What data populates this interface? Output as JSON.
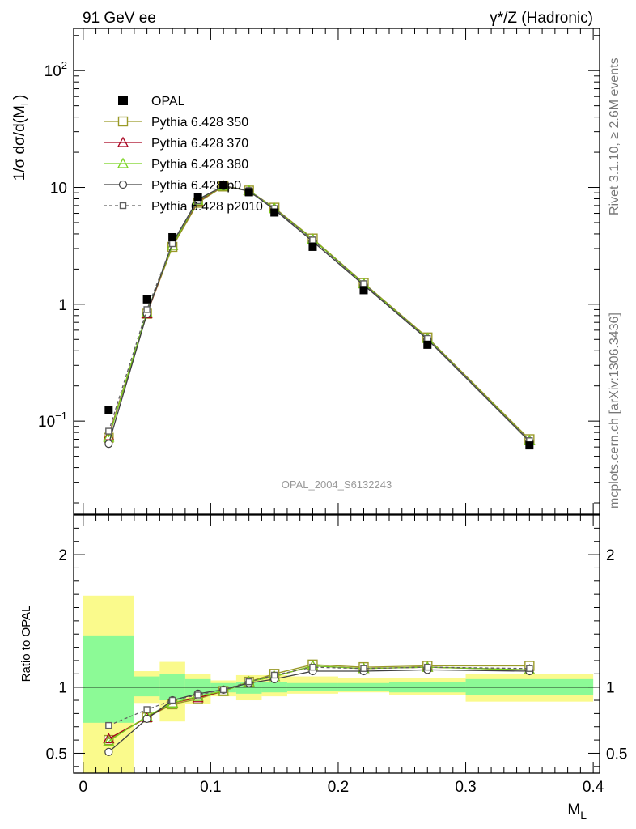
{
  "header": {
    "left": "91 GeV ee",
    "right_prefix": "γ*/Z",
    "right_suffix": " (Hadronic)"
  },
  "side_text": {
    "rivet": "Rivet 3.1.10, ≥ 2.6M events",
    "mcplots": "mcplots.cern.ch [arXiv:1306.3436]"
  },
  "watermark": "OPAL_2004_S6132243",
  "colors": {
    "data": "#000000",
    "p350": "#9a9a28",
    "p370": "#a8001e",
    "p380": "#78d21e",
    "p0": "#404040",
    "p2010": "#606060",
    "band_green": "#8cfa96",
    "band_yellow": "#fafa8c"
  },
  "chart_data": [
    {
      "type": "scatter",
      "panel": "main",
      "ylabel_main": "1/σ dσ/d(M",
      "ylabel_sub": "L",
      "ylabel_close": ")",
      "yscale": "log",
      "ylim": [
        0.016,
        230
      ],
      "xlim": [
        -0.0075,
        0.405
      ],
      "yticks": [
        {
          "value": 0.1,
          "base": "10",
          "exp": "−1"
        },
        {
          "value": 1,
          "base": "1",
          "exp": ""
        },
        {
          "value": 10,
          "base": "10",
          "exp": ""
        },
        {
          "value": 100,
          "base": "10",
          "exp": "2"
        }
      ],
      "legend": {
        "placement": "top-left",
        "entries": [
          {
            "key": "data",
            "label": "OPAL"
          },
          {
            "key": "p350",
            "label": "Pythia 6.428 350"
          },
          {
            "key": "p370",
            "label": "Pythia 6.428 370"
          },
          {
            "key": "p380",
            "label": "Pythia 6.428 380"
          },
          {
            "key": "p0",
            "label": "Pythia 6.428 p0"
          },
          {
            "key": "p2010",
            "label": "Pythia 6.428 p2010"
          }
        ]
      },
      "x": [
        0.02,
        0.05,
        0.07,
        0.09,
        0.11,
        0.13,
        0.15,
        0.18,
        0.22,
        0.27,
        0.35
      ],
      "data": [
        0.125,
        1.1,
        3.75,
        8.3,
        10.5,
        9.1,
        6.1,
        3.1,
        1.32,
        0.45,
        0.062
      ],
      "series": [
        {
          "key": "p350",
          "name": "Pythia 6.428 350",
          "marker": "square",
          "dash": false,
          "values": [
            0.072,
            0.83,
            3.1,
            7.4,
            10.2,
            9.4,
            6.7,
            3.65,
            1.52,
            0.52,
            0.07
          ]
        },
        {
          "key": "p370",
          "name": "Pythia 6.428 370",
          "marker": "triangle",
          "dash": false,
          "values": [
            0.075,
            0.83,
            3.2,
            7.6,
            10.3,
            9.4,
            6.6,
            3.6,
            1.5,
            0.51,
            0.068
          ]
        },
        {
          "key": "p380",
          "name": "Pythia 6.428 380",
          "marker": "triangle",
          "dash": false,
          "values": [
            0.073,
            0.85,
            3.2,
            7.7,
            10.3,
            9.4,
            6.6,
            3.6,
            1.5,
            0.51,
            0.068
          ]
        },
        {
          "key": "p0",
          "name": "Pythia 6.428 p0",
          "marker": "circle",
          "dash": false,
          "values": [
            0.064,
            0.83,
            3.35,
            7.9,
            10.3,
            9.3,
            6.45,
            3.45,
            1.46,
            0.5,
            0.067
          ]
        },
        {
          "key": "p2010",
          "name": "Pythia 6.428 p2010",
          "marker": "square",
          "dash": true,
          "values": [
            0.082,
            0.9,
            3.3,
            7.7,
            10.3,
            9.4,
            6.6,
            3.55,
            1.5,
            0.51,
            0.068
          ]
        }
      ]
    },
    {
      "type": "scatter",
      "panel": "ratio",
      "ylabel": "Ratio to OPAL",
      "xlabel_main": "M",
      "xlabel_sub": "L",
      "ylim": [
        0.35,
        2.3
      ],
      "yticks": [
        0.5,
        1,
        2
      ],
      "xticks": [
        0,
        0.1,
        0.2,
        0.3,
        0.4
      ],
      "bands": [
        {
          "x0": 0.0,
          "x1": 0.04,
          "g": [
            0.73,
            1.39
          ],
          "y": [
            0.35,
            1.69
          ]
        },
        {
          "x0": 0.04,
          "x1": 0.06,
          "g": [
            0.93,
            1.08
          ],
          "y": [
            0.88,
            1.12
          ]
        },
        {
          "x0": 0.06,
          "x1": 0.08,
          "g": [
            0.9,
            1.1
          ],
          "y": [
            0.74,
            1.19
          ]
        },
        {
          "x0": 0.08,
          "x1": 0.1,
          "g": [
            0.93,
            1.06
          ],
          "y": [
            0.87,
            1.1
          ]
        },
        {
          "x0": 0.1,
          "x1": 0.12,
          "g": [
            0.96,
            1.03
          ],
          "y": [
            0.93,
            1.05
          ]
        },
        {
          "x0": 0.12,
          "x1": 0.14,
          "g": [
            0.95,
            1.04
          ],
          "y": [
            0.9,
            1.09
          ]
        },
        {
          "x0": 0.14,
          "x1": 0.16,
          "g": [
            0.96,
            1.04
          ],
          "y": [
            0.93,
            1.09
          ]
        },
        {
          "x0": 0.16,
          "x1": 0.2,
          "g": [
            0.97,
            1.03
          ],
          "y": [
            0.95,
            1.08
          ]
        },
        {
          "x0": 0.2,
          "x1": 0.24,
          "g": [
            0.97,
            1.03
          ],
          "y": [
            0.96,
            1.07
          ]
        },
        {
          "x0": 0.24,
          "x1": 0.3,
          "g": [
            0.96,
            1.04
          ],
          "y": [
            0.94,
            1.07
          ]
        },
        {
          "x0": 0.3,
          "x1": 0.4,
          "g": [
            0.94,
            1.06
          ],
          "y": [
            0.89,
            1.1
          ]
        }
      ],
      "x": [
        0.02,
        0.05,
        0.07,
        0.09,
        0.11,
        0.13,
        0.15,
        0.18,
        0.22,
        0.27,
        0.35
      ],
      "series": [
        {
          "key": "p350",
          "name": "Pythia 6.428 350",
          "marker": "square",
          "dash": false,
          "values": [
            0.6,
            0.77,
            0.87,
            0.91,
            0.97,
            1.04,
            1.1,
            1.17,
            1.15,
            1.16,
            1.16
          ]
        },
        {
          "key": "p370",
          "name": "Pythia 6.428 370",
          "marker": "triangle",
          "dash": false,
          "values": [
            0.61,
            0.77,
            0.88,
            0.92,
            0.97,
            1.04,
            1.08,
            1.16,
            1.14,
            1.15,
            1.13
          ]
        },
        {
          "key": "p380",
          "name": "Pythia 6.428 380",
          "marker": "triangle",
          "dash": false,
          "values": [
            0.59,
            0.78,
            0.88,
            0.93,
            0.97,
            1.04,
            1.08,
            1.16,
            1.14,
            1.15,
            1.13
          ]
        },
        {
          "key": "p0",
          "name": "Pythia 6.428 p0",
          "marker": "circle",
          "dash": false,
          "values": [
            0.51,
            0.76,
            0.9,
            0.95,
            0.98,
            1.03,
            1.06,
            1.12,
            1.12,
            1.13,
            1.12
          ]
        },
        {
          "key": "p2010",
          "name": "Pythia 6.428 p2010",
          "marker": "square",
          "dash": true,
          "values": [
            0.71,
            0.83,
            0.9,
            0.94,
            0.98,
            1.04,
            1.09,
            1.15,
            1.14,
            1.15,
            1.14
          ]
        }
      ]
    }
  ]
}
